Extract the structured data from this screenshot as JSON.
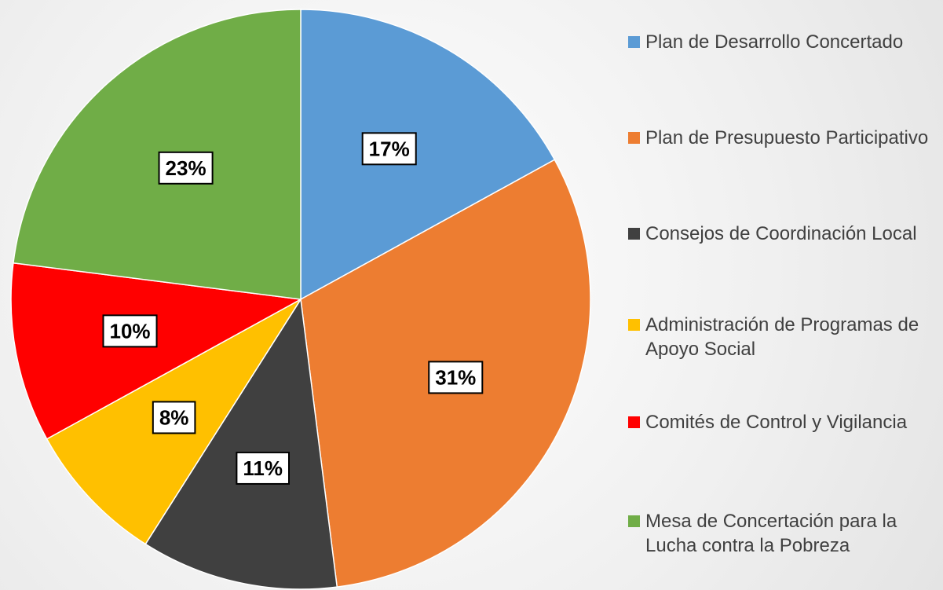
{
  "chart_data": {
    "type": "pie",
    "categories": [
      "Plan de Desarrollo Concertado",
      "Plan de Presupuesto Participativo",
      "Consejos de Coordinación Local",
      "Administración de Programas de Apoyo Social",
      "Comités de Control y Vigilancia",
      "Mesa de Concertación para la Lucha contra la Pobreza"
    ],
    "values": [
      17,
      31,
      11,
      8,
      10,
      23
    ],
    "value_labels": [
      "17%",
      "31%",
      "11%",
      "8%",
      "10%",
      "23%"
    ],
    "colors": [
      "#5b9bd5",
      "#ed7d31",
      "#404040",
      "#ffc000",
      "#ff0000",
      "#70ad47"
    ],
    "legend": "right"
  }
}
